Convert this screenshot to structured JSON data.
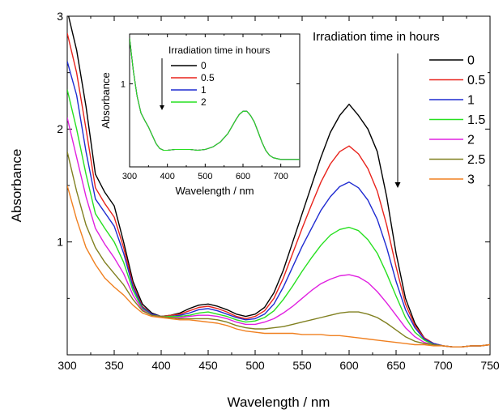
{
  "chart_data": [
    {
      "type": "line",
      "title": "",
      "xlabel": "Wavelength / nm",
      "ylabel": "Absorbance",
      "xlim": [
        300,
        750
      ],
      "ylim": [
        0,
        3
      ],
      "x_ticks": [
        300,
        350,
        400,
        450,
        500,
        550,
        600,
        650,
        700,
        750
      ],
      "y_ticks": [
        1,
        2,
        3
      ],
      "grid": false,
      "legend": {
        "title": "Irradiation time in hours",
        "placement": "top-right",
        "arrow": "down"
      },
      "x": [
        300,
        310,
        320,
        330,
        340,
        350,
        360,
        370,
        380,
        390,
        400,
        410,
        420,
        430,
        440,
        450,
        460,
        470,
        480,
        490,
        500,
        510,
        520,
        530,
        540,
        550,
        560,
        570,
        580,
        590,
        600,
        610,
        620,
        630,
        640,
        650,
        660,
        670,
        680,
        690,
        700,
        710,
        720,
        730,
        740,
        750
      ],
      "series": [
        {
          "name": "0",
          "color": "#000000",
          "values": [
            3.05,
            2.7,
            2.2,
            1.6,
            1.44,
            1.32,
            1.0,
            0.65,
            0.45,
            0.37,
            0.34,
            0.35,
            0.37,
            0.41,
            0.44,
            0.45,
            0.43,
            0.4,
            0.36,
            0.34,
            0.36,
            0.42,
            0.55,
            0.75,
            1.0,
            1.25,
            1.5,
            1.75,
            1.97,
            2.12,
            2.22,
            2.12,
            2.0,
            1.8,
            1.4,
            0.9,
            0.5,
            0.28,
            0.15,
            0.1,
            0.08,
            0.07,
            0.07,
            0.08,
            0.08,
            0.09
          ]
        },
        {
          "name": "0.5",
          "color": "#e8231c",
          "values": [
            2.85,
            2.5,
            2.0,
            1.48,
            1.34,
            1.22,
            0.95,
            0.62,
            0.43,
            0.36,
            0.34,
            0.35,
            0.36,
            0.39,
            0.42,
            0.43,
            0.41,
            0.38,
            0.34,
            0.32,
            0.34,
            0.39,
            0.5,
            0.68,
            0.9,
            1.12,
            1.33,
            1.53,
            1.69,
            1.8,
            1.85,
            1.78,
            1.65,
            1.45,
            1.15,
            0.78,
            0.45,
            0.26,
            0.15,
            0.1,
            0.08,
            0.07,
            0.07,
            0.08,
            0.08,
            0.09
          ]
        },
        {
          "name": "1",
          "color": "#1f2bd1",
          "values": [
            2.6,
            2.3,
            1.8,
            1.38,
            1.26,
            1.14,
            0.9,
            0.6,
            0.42,
            0.36,
            0.34,
            0.34,
            0.35,
            0.37,
            0.4,
            0.41,
            0.39,
            0.36,
            0.33,
            0.31,
            0.32,
            0.36,
            0.45,
            0.6,
            0.78,
            0.96,
            1.12,
            1.28,
            1.4,
            1.49,
            1.53,
            1.48,
            1.37,
            1.2,
            0.95,
            0.65,
            0.4,
            0.24,
            0.14,
            0.1,
            0.08,
            0.07,
            0.07,
            0.08,
            0.08,
            0.09
          ]
        },
        {
          "name": "1.5",
          "color": "#27e020",
          "values": [
            2.35,
            2.0,
            1.6,
            1.25,
            1.12,
            1.0,
            0.82,
            0.57,
            0.41,
            0.35,
            0.34,
            0.34,
            0.34,
            0.35,
            0.37,
            0.38,
            0.36,
            0.34,
            0.31,
            0.29,
            0.3,
            0.33,
            0.39,
            0.49,
            0.61,
            0.74,
            0.86,
            0.97,
            1.06,
            1.11,
            1.13,
            1.1,
            1.02,
            0.9,
            0.72,
            0.52,
            0.33,
            0.2,
            0.13,
            0.09,
            0.08,
            0.07,
            0.07,
            0.08,
            0.08,
            0.09
          ]
        },
        {
          "name": "2",
          "color": "#e020e0",
          "values": [
            2.1,
            1.75,
            1.4,
            1.12,
            0.98,
            0.86,
            0.72,
            0.53,
            0.4,
            0.35,
            0.34,
            0.33,
            0.33,
            0.34,
            0.35,
            0.35,
            0.34,
            0.32,
            0.29,
            0.27,
            0.27,
            0.29,
            0.32,
            0.37,
            0.43,
            0.5,
            0.57,
            0.63,
            0.67,
            0.7,
            0.71,
            0.69,
            0.64,
            0.56,
            0.46,
            0.35,
            0.24,
            0.16,
            0.11,
            0.09,
            0.08,
            0.07,
            0.07,
            0.08,
            0.08,
            0.09
          ]
        },
        {
          "name": "2.5",
          "color": "#808020",
          "values": [
            1.8,
            1.45,
            1.15,
            0.95,
            0.82,
            0.72,
            0.62,
            0.49,
            0.39,
            0.35,
            0.34,
            0.33,
            0.32,
            0.32,
            0.32,
            0.32,
            0.31,
            0.29,
            0.26,
            0.24,
            0.23,
            0.23,
            0.24,
            0.25,
            0.27,
            0.29,
            0.31,
            0.33,
            0.35,
            0.37,
            0.38,
            0.38,
            0.36,
            0.33,
            0.28,
            0.22,
            0.16,
            0.12,
            0.1,
            0.09,
            0.08,
            0.07,
            0.07,
            0.08,
            0.08,
            0.09
          ]
        },
        {
          "name": "3",
          "color": "#f08020",
          "values": [
            1.5,
            1.2,
            0.95,
            0.8,
            0.68,
            0.6,
            0.53,
            0.44,
            0.37,
            0.34,
            0.33,
            0.32,
            0.31,
            0.31,
            0.3,
            0.29,
            0.28,
            0.26,
            0.23,
            0.21,
            0.2,
            0.19,
            0.19,
            0.19,
            0.19,
            0.18,
            0.18,
            0.18,
            0.17,
            0.17,
            0.16,
            0.15,
            0.14,
            0.13,
            0.12,
            0.11,
            0.1,
            0.09,
            0.09,
            0.08,
            0.08,
            0.07,
            0.07,
            0.08,
            0.08,
            0.09
          ]
        }
      ]
    },
    {
      "type": "line",
      "title": "",
      "xlabel": "Wavelength  / nm",
      "ylabel": "Absorbance",
      "xlim": [
        300,
        750
      ],
      "ylim": [
        0,
        1.6
      ],
      "x_ticks": [
        300,
        400,
        500,
        600,
        700
      ],
      "y_ticks": [
        1
      ],
      "grid": false,
      "legend": {
        "title": "Irradiation time in hours",
        "placement": "top-right",
        "arrow": "down"
      },
      "x": [
        300,
        310,
        320,
        330,
        340,
        350,
        360,
        370,
        380,
        390,
        400,
        420,
        440,
        460,
        480,
        500,
        520,
        540,
        560,
        570,
        580,
        590,
        600,
        610,
        620,
        630,
        640,
        650,
        660,
        670,
        680,
        690,
        700,
        720,
        750
      ],
      "series": [
        {
          "name": "0",
          "color": "#000000",
          "values": [
            1.55,
            1.15,
            0.85,
            0.65,
            0.56,
            0.48,
            0.38,
            0.28,
            0.22,
            0.2,
            0.2,
            0.21,
            0.21,
            0.21,
            0.2,
            0.21,
            0.24,
            0.3,
            0.4,
            0.48,
            0.56,
            0.63,
            0.67,
            0.67,
            0.62,
            0.54,
            0.42,
            0.3,
            0.2,
            0.14,
            0.11,
            0.1,
            0.09,
            0.09,
            0.09
          ]
        },
        {
          "name": "0.5",
          "color": "#e8231c",
          "values": [
            1.55,
            1.15,
            0.85,
            0.65,
            0.56,
            0.48,
            0.38,
            0.28,
            0.22,
            0.2,
            0.2,
            0.21,
            0.21,
            0.21,
            0.2,
            0.21,
            0.24,
            0.3,
            0.4,
            0.48,
            0.56,
            0.63,
            0.67,
            0.67,
            0.62,
            0.54,
            0.42,
            0.3,
            0.2,
            0.14,
            0.11,
            0.1,
            0.09,
            0.09,
            0.09
          ]
        },
        {
          "name": "1",
          "color": "#1f2bd1",
          "values": [
            1.55,
            1.15,
            0.85,
            0.65,
            0.56,
            0.48,
            0.38,
            0.28,
            0.22,
            0.2,
            0.2,
            0.21,
            0.21,
            0.21,
            0.2,
            0.21,
            0.24,
            0.3,
            0.4,
            0.48,
            0.56,
            0.63,
            0.67,
            0.67,
            0.62,
            0.54,
            0.42,
            0.3,
            0.2,
            0.14,
            0.11,
            0.1,
            0.09,
            0.09,
            0.09
          ]
        },
        {
          "name": "2",
          "color": "#27e020",
          "values": [
            1.55,
            1.15,
            0.85,
            0.65,
            0.56,
            0.48,
            0.38,
            0.28,
            0.22,
            0.2,
            0.2,
            0.21,
            0.21,
            0.21,
            0.2,
            0.21,
            0.24,
            0.3,
            0.4,
            0.48,
            0.56,
            0.63,
            0.67,
            0.67,
            0.62,
            0.54,
            0.42,
            0.3,
            0.2,
            0.14,
            0.11,
            0.1,
            0.09,
            0.09,
            0.09
          ]
        }
      ]
    }
  ]
}
